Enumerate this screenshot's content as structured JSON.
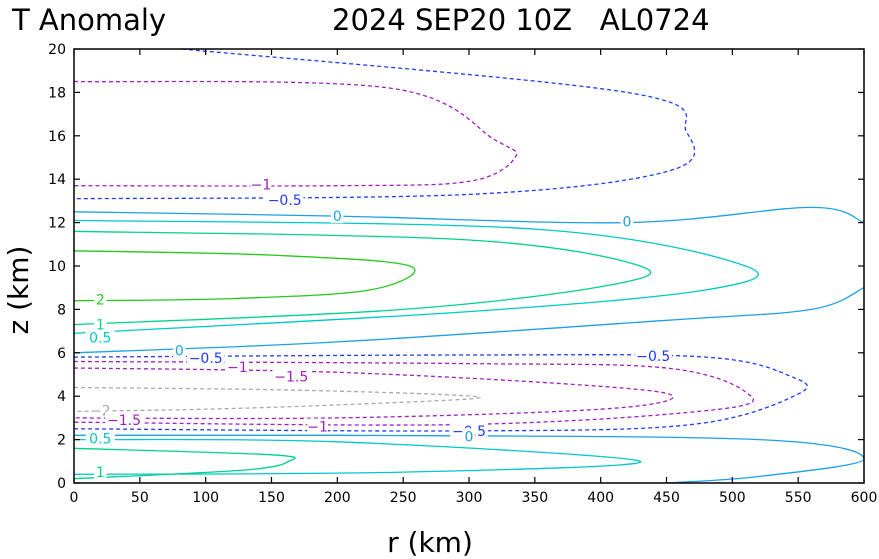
{
  "chart_data": {
    "type": "contour",
    "title_left": "T Anomaly",
    "title_right": "2024 SEP20 10Z   AL0724",
    "xlabel": "r (km)",
    "ylabel": "z (km)",
    "xlim": [
      0,
      600
    ],
    "ylim": [
      0,
      20
    ],
    "xticks": [
      0,
      50,
      100,
      150,
      200,
      250,
      300,
      350,
      400,
      450,
      500,
      550,
      600
    ],
    "yticks": [
      0,
      2,
      4,
      6,
      8,
      10,
      12,
      14,
      16,
      18,
      20
    ],
    "levels": [
      {
        "value": -2,
        "label": "-2",
        "color": "#aaaaaa",
        "dashed": true
      },
      {
        "value": -1.5,
        "label": "-1.5",
        "color": "#a020c0",
        "dashed": true
      },
      {
        "value": -1,
        "label": "-1",
        "color": "#a020c0",
        "dashed": true
      },
      {
        "value": -0.5,
        "label": "-0.5",
        "color": "#1e3cff",
        "dashed": true
      },
      {
        "value": 0,
        "label": "0",
        "color": "#1ea0e6",
        "dashed": false
      },
      {
        "value": 0.5,
        "label": "0.5",
        "color": "#00c8c8",
        "dashed": false
      },
      {
        "value": 1,
        "label": "1",
        "color": "#00d28c",
        "dashed": false
      },
      {
        "value": 2,
        "label": "2",
        "color": "#28c81e",
        "dashed": false
      }
    ],
    "contours": [
      {
        "level": "-0.5",
        "points": [
          [
            82,
            20
          ],
          [
            420,
            18
          ],
          [
            465,
            16.2
          ],
          [
            453,
            14.4
          ],
          [
            300,
            13.3
          ],
          [
            0,
            13.1
          ]
        ]
      },
      {
        "level": "-1",
        "points": [
          [
            0,
            18.5
          ],
          [
            240,
            18.2
          ],
          [
            320,
            15.8
          ],
          [
            335,
            15.0
          ],
          [
            300,
            13.9
          ],
          [
            200,
            13.7
          ],
          [
            0,
            13.7
          ]
        ]
      },
      {
        "level": "0",
        "points": [
          [
            0,
            12.5
          ],
          [
            200,
            12.3
          ],
          [
            420,
            12.0
          ],
          [
            560,
            12.7
          ],
          [
            600,
            12.0
          ]
        ]
      },
      {
        "level": "0.5",
        "points": [
          [
            0,
            12.1
          ],
          [
            350,
            11.7
          ],
          [
            510,
            10.0
          ],
          [
            480,
            8.9
          ],
          [
            300,
            7.9
          ],
          [
            0,
            6.9
          ]
        ]
      },
      {
        "level": "1",
        "points": [
          [
            0,
            11.6
          ],
          [
            300,
            11.2
          ],
          [
            430,
            10.0
          ],
          [
            405,
            9.1
          ],
          [
            250,
            8.0
          ],
          [
            0,
            7.3
          ]
        ]
      },
      {
        "level": "2",
        "points": [
          [
            0,
            10.7
          ],
          [
            150,
            10.5
          ],
          [
            255,
            10.0
          ],
          [
            225,
            8.9
          ],
          [
            120,
            8.5
          ],
          [
            0,
            8.4
          ]
        ]
      },
      {
        "level": "0",
        "points": [
          [
            0,
            6.0
          ],
          [
            200,
            6.5
          ],
          [
            450,
            7.5
          ],
          [
            560,
            8.0
          ],
          [
            600,
            9.0
          ]
        ]
      },
      {
        "level": "-0.5",
        "points": [
          [
            0,
            5.8
          ],
          [
            300,
            5.9
          ],
          [
            480,
            5.8
          ],
          [
            545,
            4.9
          ],
          [
            550,
            4.1
          ],
          [
            470,
            2.7
          ],
          [
            300,
            2.4
          ],
          [
            0,
            2.5
          ]
        ]
      },
      {
        "level": "-1",
        "points": [
          [
            0,
            5.6
          ],
          [
            300,
            5.5
          ],
          [
            450,
            5.3
          ],
          [
            510,
            4.2
          ],
          [
            490,
            3.4
          ],
          [
            300,
            2.7
          ],
          [
            0,
            2.8
          ]
        ]
      },
      {
        "level": "-1.5",
        "points": [
          [
            0,
            5.3
          ],
          [
            200,
            5.1
          ],
          [
            390,
            4.5
          ],
          [
            455,
            4.0
          ],
          [
            400,
            3.4
          ],
          [
            200,
            3.0
          ],
          [
            0,
            3.0
          ]
        ]
      },
      {
        "level": "-2",
        "points": [
          [
            0,
            4.4
          ],
          [
            150,
            4.3
          ],
          [
            270,
            4.1
          ],
          [
            305,
            3.9
          ],
          [
            200,
            3.6
          ],
          [
            100,
            3.4
          ],
          [
            0,
            3.3
          ]
        ]
      },
      {
        "level": "0",
        "points": [
          [
            0,
            2.2
          ],
          [
            200,
            2.2
          ],
          [
            520,
            2.0
          ],
          [
            600,
            1.1
          ],
          [
            520,
            0.3
          ],
          [
            450,
            0
          ]
        ]
      },
      {
        "level": "0.5",
        "points": [
          [
            0,
            2.0
          ],
          [
            200,
            1.9
          ],
          [
            430,
            1.0
          ],
          [
            250,
            0.5
          ],
          [
            0,
            0.4
          ]
        ]
      },
      {
        "level": "1",
        "points": [
          [
            0,
            1.6
          ],
          [
            150,
            1.3
          ],
          [
            163,
            1.0
          ],
          [
            130,
            0.6
          ],
          [
            0,
            0.2
          ]
        ]
      }
    ],
    "contour_labels": [
      {
        "text": "-1",
        "x": 142,
        "y": 13.75,
        "level": "-1"
      },
      {
        "text": "-0.5",
        "x": 160,
        "y": 13.05,
        "level": "-0.5"
      },
      {
        "text": "0",
        "x": 200,
        "y": 12.3,
        "level": "0"
      },
      {
        "text": "0",
        "x": 420,
        "y": 12.05,
        "level": "0"
      },
      {
        "text": "2",
        "x": 20,
        "y": 8.45,
        "level": "2"
      },
      {
        "text": "1",
        "x": 20,
        "y": 7.3,
        "level": "1"
      },
      {
        "text": "0.5",
        "x": 20,
        "y": 6.7,
        "level": "0.5"
      },
      {
        "text": "0",
        "x": 80,
        "y": 6.1,
        "level": "0"
      },
      {
        "text": "-0.5",
        "x": 100,
        "y": 5.75,
        "level": "-0.5"
      },
      {
        "text": "-0.5",
        "x": 440,
        "y": 5.85,
        "level": "-0.5"
      },
      {
        "text": "-1",
        "x": 124,
        "y": 5.35,
        "level": "-1"
      },
      {
        "text": "-1.5",
        "x": 165,
        "y": 4.9,
        "level": "-1.5"
      },
      {
        "text": "-2",
        "x": 20,
        "y": 3.35,
        "level": "-2"
      },
      {
        "text": "-1.5",
        "x": 38,
        "y": 2.9,
        "level": "-1.5"
      },
      {
        "text": "-1",
        "x": 185,
        "y": 2.6,
        "level": "-1"
      },
      {
        "text": "-0.5",
        "x": 300,
        "y": 2.4,
        "level": "-0.5"
      },
      {
        "text": "0",
        "x": 300,
        "y": 2.15,
        "level": "0"
      },
      {
        "text": "0.5",
        "x": 20,
        "y": 2.05,
        "level": "0.5"
      },
      {
        "text": "1",
        "x": 20,
        "y": 0.5,
        "level": "1"
      }
    ]
  }
}
